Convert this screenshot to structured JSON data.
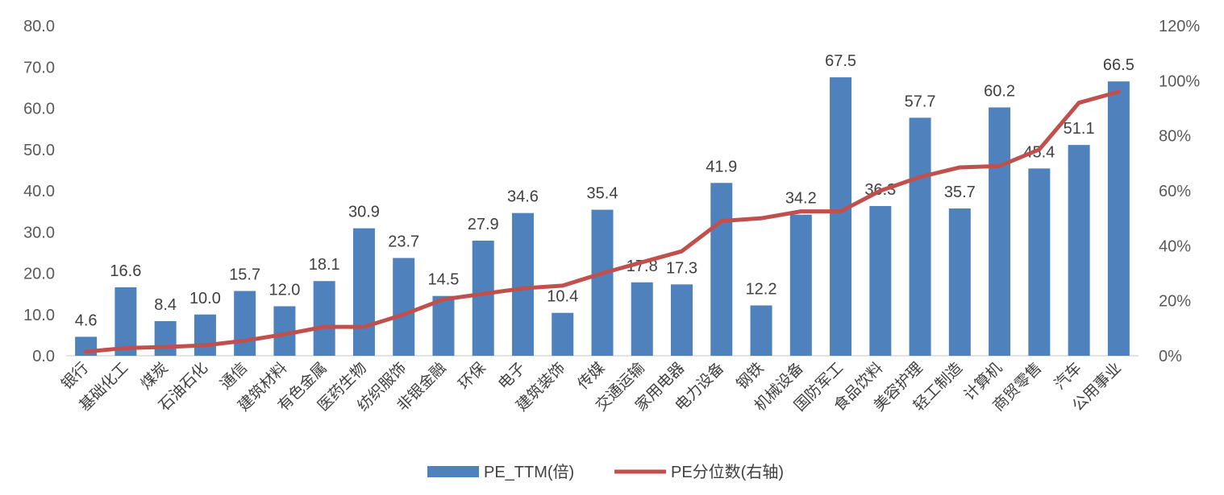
{
  "chart_data": {
    "type": "bar",
    "categories": [
      "银行",
      "基础化工",
      "煤炭",
      "石油石化",
      "通信",
      "建筑材料",
      "有色金属",
      "医药生物",
      "纺织服饰",
      "非银金融",
      "环保",
      "电子",
      "建筑装饰",
      "传媒",
      "交通运输",
      "家用电器",
      "电力设备",
      "钢铁",
      "机械设备",
      "国防军工",
      "食品饮料",
      "美容护理",
      "轻工制造",
      "计算机",
      "商贸零售",
      "汽车",
      "公用事业"
    ],
    "series": [
      {
        "name": "PE_TTM(倍)",
        "type": "bar",
        "axis": "left",
        "color": "#4F81BD",
        "values": [
          4.6,
          16.6,
          8.4,
          10.0,
          15.7,
          12.0,
          18.1,
          30.9,
          23.7,
          14.5,
          27.9,
          34.6,
          10.4,
          35.4,
          17.8,
          17.3,
          41.9,
          12.2,
          34.2,
          67.5,
          36.3,
          57.7,
          35.7,
          60.2,
          45.4,
          51.1,
          66.5
        ],
        "labels": [
          "4.6",
          "16.6",
          "8.4",
          "10.0",
          "15.7",
          "12.0",
          "18.1",
          "30.9",
          "23.7",
          "14.5",
          "27.9",
          "34.6",
          "10.4",
          "35.4",
          "17.8",
          "17.3",
          "41.9",
          "12.2",
          "34.2",
          "67.5",
          "36.3",
          "57.7",
          "35.7",
          "60.2",
          "45.4",
          "51.1",
          "66.5"
        ]
      },
      {
        "name": "PE分位数(右轴)",
        "type": "line",
        "axis": "right",
        "color": "#C0504D",
        "values": [
          1.5,
          2.8,
          3.2,
          3.8,
          5.5,
          7.8,
          10.5,
          10.5,
          15.0,
          20.5,
          22.5,
          24.5,
          25.5,
          30.0,
          34.0,
          38.0,
          49.0,
          50.0,
          52.5,
          52.5,
          60.0,
          65.0,
          68.5,
          69.0,
          75.0,
          92.0,
          96.0
        ]
      }
    ],
    "y_left": {
      "min": 0,
      "max": 80,
      "ticks": [
        "0.0",
        "10.0",
        "20.0",
        "30.0",
        "40.0",
        "50.0",
        "60.0",
        "70.0",
        "80.0"
      ]
    },
    "y_right": {
      "min": 0,
      "max": 120,
      "ticks": [
        "0%",
        "20%",
        "40%",
        "60%",
        "80%",
        "100%",
        "120%"
      ]
    },
    "grid": false,
    "legend": {
      "position": "bottom",
      "items": [
        "PE_TTM(倍)",
        "PE分位数(右轴)"
      ]
    }
  }
}
